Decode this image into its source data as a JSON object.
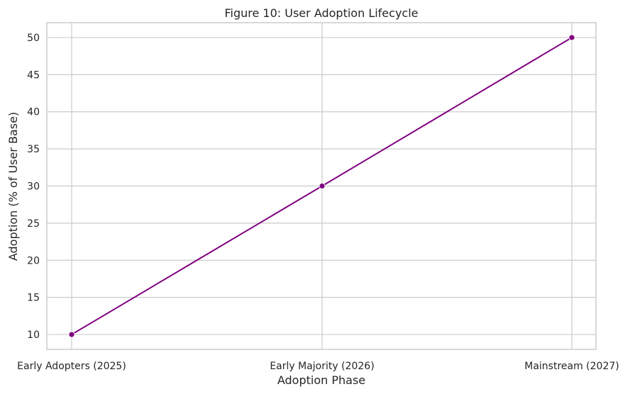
{
  "chart_data": {
    "type": "line",
    "title": "Figure 10: User Adoption Lifecycle",
    "xlabel": "Adoption Phase",
    "ylabel": "Adoption (% of User Base)",
    "categories": [
      "Early Adopters (2025)",
      "Early Majority (2026)",
      "Mainstream (2027)"
    ],
    "series": [
      {
        "values": [
          10,
          30,
          50
        ],
        "color": "#800080",
        "marker": "circle"
      }
    ],
    "y_ticks": [
      10,
      15,
      20,
      25,
      30,
      35,
      40,
      45,
      50
    ],
    "ylim": [
      8,
      52
    ],
    "grid": true,
    "legend": "none"
  }
}
